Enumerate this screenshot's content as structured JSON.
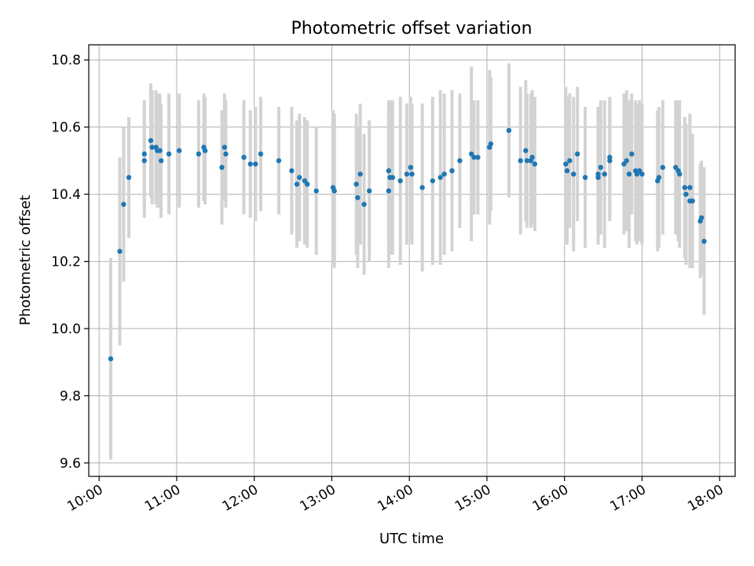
{
  "chart_data": {
    "type": "scatter",
    "title": "Photometric offset variation",
    "xlabel": "UTC time",
    "ylabel": "Photometric offset",
    "x_unit": "UTC hours",
    "xlim": [
      "09:52",
      "18:12"
    ],
    "ylim": [
      9.56,
      10.845
    ],
    "grid": true,
    "x_ticks": [
      "10:00",
      "11:00",
      "12:00",
      "13:00",
      "14:00",
      "15:00",
      "16:00",
      "17:00",
      "18:00"
    ],
    "y_ticks": [
      "9.6",
      "9.8",
      "10.0",
      "10.2",
      "10.4",
      "10.6",
      "10.8"
    ],
    "marker_color": "#1f77b4",
    "errorbar_color": "#d3d3d3",
    "points": [
      [
        "10:09",
        9.91,
        0.3
      ],
      [
        "10:16",
        10.23,
        0.28
      ],
      [
        "10:19",
        10.37,
        0.23
      ],
      [
        "10:23",
        10.45,
        0.18
      ],
      [
        "10:35",
        10.52,
        0.16
      ],
      [
        "10:35",
        10.5,
        0.17
      ],
      [
        "10:40",
        10.56,
        0.17
      ],
      [
        "10:41",
        10.54,
        0.17
      ],
      [
        "10:44",
        10.54,
        0.17
      ],
      [
        "10:45",
        10.53,
        0.17
      ],
      [
        "10:47",
        10.53,
        0.17
      ],
      [
        "10:48",
        10.5,
        0.17
      ],
      [
        "10:54",
        10.52,
        0.18
      ],
      [
        "11:02",
        10.53,
        0.17
      ],
      [
        "11:17",
        10.52,
        0.16
      ],
      [
        "11:21",
        10.54,
        0.16
      ],
      [
        "11:22",
        10.53,
        0.16
      ],
      [
        "11:35",
        10.48,
        0.17
      ],
      [
        "11:37",
        10.54,
        0.16
      ],
      [
        "11:38",
        10.52,
        0.16
      ],
      [
        "11:52",
        10.51,
        0.17
      ],
      [
        "11:57",
        10.49,
        0.16
      ],
      [
        "12:01",
        10.49,
        0.17
      ],
      [
        "12:05",
        10.52,
        0.17
      ],
      [
        "12:19",
        10.5,
        0.16
      ],
      [
        "12:29",
        10.47,
        0.19
      ],
      [
        "12:33",
        10.43,
        0.19
      ],
      [
        "12:35",
        10.45,
        0.19
      ],
      [
        "12:39",
        10.44,
        0.19
      ],
      [
        "12:41",
        10.43,
        0.19
      ],
      [
        "12:48",
        10.41,
        0.19
      ],
      [
        "13:01",
        10.42,
        0.23
      ],
      [
        "13:02",
        10.41,
        0.23
      ],
      [
        "13:19",
        10.43,
        0.21
      ],
      [
        "13:20",
        10.39,
        0.21
      ],
      [
        "13:22",
        10.46,
        0.21
      ],
      [
        "13:25",
        10.37,
        0.21
      ],
      [
        "13:29",
        10.41,
        0.21
      ],
      [
        "13:44",
        10.47,
        0.21
      ],
      [
        "13:44",
        10.41,
        0.23
      ],
      [
        "13:45",
        10.45,
        0.23
      ],
      [
        "13:47",
        10.45,
        0.23
      ],
      [
        "13:53",
        10.44,
        0.25
      ],
      [
        "13:58",
        10.46,
        0.21
      ],
      [
        "14:01",
        10.48,
        0.21
      ],
      [
        "14:02",
        10.46,
        0.21
      ],
      [
        "14:10",
        10.42,
        0.25
      ],
      [
        "14:18",
        10.44,
        0.25
      ],
      [
        "14:24",
        10.45,
        0.26
      ],
      [
        "14:27",
        10.46,
        0.24
      ],
      [
        "14:33",
        10.47,
        0.24
      ],
      [
        "14:39",
        10.5,
        0.2
      ],
      [
        "14:48",
        10.52,
        0.26
      ],
      [
        "14:50",
        10.51,
        0.17
      ],
      [
        "14:53",
        10.51,
        0.17
      ],
      [
        "15:02",
        10.54,
        0.23
      ],
      [
        "15:03",
        10.55,
        0.2
      ],
      [
        "15:17",
        10.59,
        0.2
      ],
      [
        "15:26",
        10.5,
        0.22
      ],
      [
        "15:30",
        10.53,
        0.21
      ],
      [
        "15:31",
        10.5,
        0.2
      ],
      [
        "15:34",
        10.5,
        0.2
      ],
      [
        "15:35",
        10.51,
        0.2
      ],
      [
        "15:37",
        10.49,
        0.2
      ],
      [
        "16:01",
        10.49,
        0.23
      ],
      [
        "16:02",
        10.47,
        0.22
      ],
      [
        "16:04",
        10.5,
        0.2
      ],
      [
        "16:07",
        10.46,
        0.23
      ],
      [
        "16:10",
        10.52,
        0.2
      ],
      [
        "16:16",
        10.45,
        0.21
      ],
      [
        "16:26",
        10.46,
        0.2
      ],
      [
        "16:26",
        10.45,
        0.2
      ],
      [
        "16:28",
        10.48,
        0.2
      ],
      [
        "16:31",
        10.46,
        0.22
      ],
      [
        "16:35",
        10.51,
        0.18
      ],
      [
        "16:35",
        10.5,
        0.18
      ],
      [
        "16:46",
        10.49,
        0.21
      ],
      [
        "16:48",
        10.5,
        0.21
      ],
      [
        "16:50",
        10.46,
        0.22
      ],
      [
        "16:52",
        10.52,
        0.18
      ],
      [
        "16:55",
        10.47,
        0.21
      ],
      [
        "16:56",
        10.46,
        0.21
      ],
      [
        "16:58",
        10.47,
        0.21
      ],
      [
        "17:00",
        10.46,
        0.21
      ],
      [
        "17:12",
        10.44,
        0.21
      ],
      [
        "17:13",
        10.45,
        0.21
      ],
      [
        "17:16",
        10.48,
        0.2
      ],
      [
        "17:26",
        10.48,
        0.2
      ],
      [
        "17:28",
        10.47,
        0.21
      ],
      [
        "17:29",
        10.46,
        0.22
      ],
      [
        "17:33",
        10.42,
        0.21
      ],
      [
        "17:34",
        10.4,
        0.21
      ],
      [
        "17:37",
        10.42,
        0.22
      ],
      [
        "17:37",
        10.38,
        0.2
      ],
      [
        "17:39",
        10.38,
        0.2
      ],
      [
        "17:45",
        10.32,
        0.17
      ],
      [
        "17:46",
        10.33,
        0.17
      ],
      [
        "17:48",
        10.26,
        0.22
      ]
    ]
  }
}
